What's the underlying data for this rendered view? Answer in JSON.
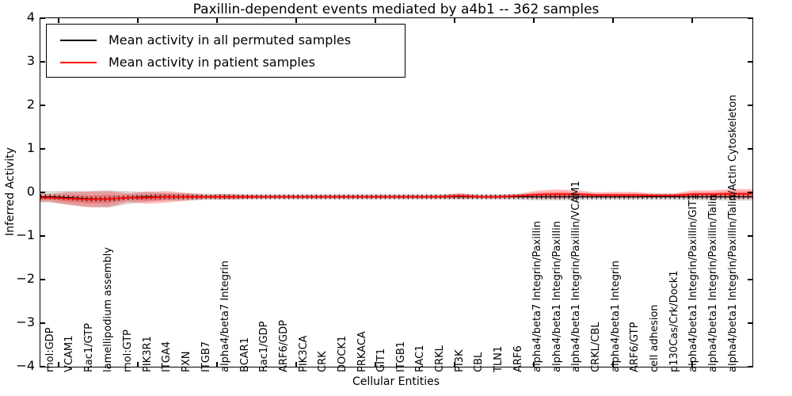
{
  "chart": {
    "title": "Paxillin-dependent events mediated by a4b1 -- 362 samples",
    "xlabel": "Cellular Entities",
    "ylabel": "Inferred Activity",
    "legend": [
      {
        "label": "Mean activity in all permuted samples",
        "color": "#000000"
      },
      {
        "label": "Mean activity in patient samples",
        "color": "#ff0000"
      }
    ],
    "ytick_values": [
      4,
      3,
      2,
      1,
      0,
      -1,
      -2,
      -3,
      -4
    ]
  },
  "chart_data": {
    "type": "line",
    "title": "Paxillin-dependent events mediated by a4b1 -- 362 samples",
    "xlabel": "Cellular Entities",
    "ylabel": "Inferred Activity",
    "ylim": [
      -4,
      4
    ],
    "grid": false,
    "legend_position": "upper left",
    "band_colors": {
      "permuted_band": "rgba(0,0,0,0.15)",
      "patient_band": "rgba(255,0,0,0.27)"
    },
    "categories": [
      "mol:GDP",
      "VCAM1",
      "Rac1/GTP",
      "lamellipodium assembly",
      "mol:GTP",
      "PIK3R1",
      "ITGA4",
      "PXN",
      "ITGB7",
      "alpha4/beta7 Integrin",
      "BCAR1",
      "Rac1/GDP",
      "ARF6/GDP",
      "PIK3CA",
      "CRK",
      "DOCK1",
      "PRKACA",
      "GIT1",
      "ITGB1",
      "RAC1",
      "CRKL",
      "PI3K",
      "CBL",
      "TLN1",
      "ARF6",
      "alpha4/beta7 Integrin/Paxillin",
      "alpha4/beta1 Integrin/Paxillin",
      "alpha4/beta1 Integrin/Paxillin/VCAM1",
      "CRKL/CBL",
      "alpha4/beta1 Integrin",
      "ARF6/GTP",
      "cell adhesion",
      "p130Cas/Crk/Dock1",
      "alpha4/beta1 Integrin/Paxillin/GIT1",
      "alpha4/beta1 Integrin/Paxillin/Talin",
      "alpha4/beta1 Integrin/Paxillin/Talin/Actin Cytoskeleton"
    ],
    "series": [
      {
        "name": "Mean activity in all permuted samples",
        "color": "#000000",
        "values": [
          -0.1,
          -0.12,
          -0.15,
          -0.15,
          -0.12,
          -0.1,
          -0.1,
          -0.1,
          -0.1,
          -0.1,
          -0.1,
          -0.1,
          -0.1,
          -0.1,
          -0.1,
          -0.1,
          -0.1,
          -0.1,
          -0.1,
          -0.1,
          -0.1,
          -0.1,
          -0.1,
          -0.1,
          -0.1,
          -0.1,
          -0.1,
          -0.1,
          -0.1,
          -0.1,
          -0.1,
          -0.1,
          -0.1,
          -0.1,
          -0.1,
          -0.1
        ],
        "std": [
          0.13,
          0.16,
          0.18,
          0.2,
          0.15,
          0.11,
          0.09,
          0.09,
          0.07,
          0.06,
          0.06,
          0.06,
          0.06,
          0.06,
          0.06,
          0.06,
          0.06,
          0.06,
          0.06,
          0.06,
          0.06,
          0.06,
          0.06,
          0.06,
          0.07,
          0.08,
          0.08,
          0.08,
          0.07,
          0.07,
          0.07,
          0.07,
          0.07,
          0.08,
          0.08,
          0.09
        ]
      },
      {
        "name": "Mean activity in patient samples",
        "color": "#ff0000",
        "values": [
          -0.12,
          -0.14,
          -0.16,
          -0.15,
          -0.12,
          -0.12,
          -0.1,
          -0.1,
          -0.1,
          -0.1,
          -0.1,
          -0.1,
          -0.1,
          -0.1,
          -0.1,
          -0.1,
          -0.1,
          -0.1,
          -0.1,
          -0.1,
          -0.1,
          -0.08,
          -0.1,
          -0.1,
          -0.08,
          -0.05,
          -0.04,
          -0.04,
          -0.06,
          -0.06,
          -0.06,
          -0.07,
          -0.07,
          -0.04,
          -0.04,
          -0.03
        ],
        "std": [
          0.09,
          0.15,
          0.18,
          0.18,
          0.1,
          0.14,
          0.13,
          0.09,
          0.05,
          0.07,
          0.05,
          0.04,
          0.04,
          0.04,
          0.04,
          0.04,
          0.04,
          0.04,
          0.04,
          0.04,
          0.04,
          0.07,
          0.04,
          0.04,
          0.05,
          0.09,
          0.11,
          0.09,
          0.06,
          0.07,
          0.07,
          0.05,
          0.05,
          0.09,
          0.09,
          0.11
        ]
      }
    ]
  }
}
